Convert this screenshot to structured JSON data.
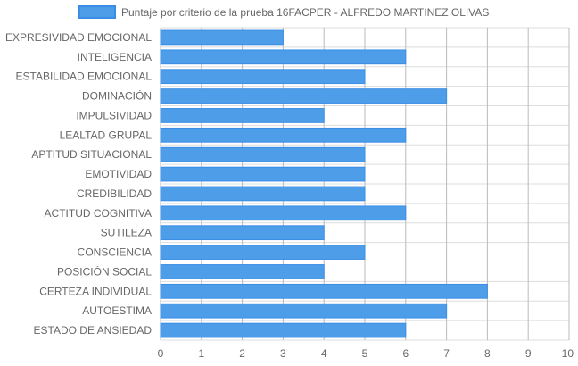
{
  "chart_data": {
    "type": "bar",
    "orientation": "horizontal",
    "title": "",
    "xlabel": "",
    "ylabel": "",
    "categories": [
      "EXPRESIVIDAD EMOCIONAL",
      "INTELIGENCIA",
      "ESTABILIDAD EMOCIONAL",
      "DOMINACIÓN",
      "IMPULSIVIDAD",
      "LEALTAD GRUPAL",
      "APTITUD SITUACIONAL",
      "EMOTIVIDAD",
      "CREDIBILIDAD",
      "ACTITUD COGNITIVA",
      "SUTILEZA",
      "CONSCIENCIA",
      "POSICIÓN SOCIAL",
      "CERTEZA INDIVIDUAL",
      "AUTOESTIMA",
      "ESTADO DE ANSIEDAD"
    ],
    "series": [
      {
        "name": "Puntaje por criterio de la prueba 16FACPER - ALFREDO MARTINEZ OLIVAS",
        "values": [
          3,
          6,
          5,
          7,
          4,
          6,
          5,
          5,
          5,
          6,
          4,
          5,
          4,
          8,
          7,
          6
        ]
      }
    ],
    "xlim": [
      0,
      10
    ],
    "xticks": [
      "0",
      "1",
      "2",
      "3",
      "4",
      "5",
      "6",
      "7",
      "8",
      "9",
      "10"
    ],
    "grid": true,
    "legend": "top-center",
    "colors": {
      "bar_fill": "#4e9de8",
      "bar_stroke": "#3a8ee6",
      "grid": "#dddddd",
      "grid_major": "#bbbbbb",
      "text": "#666666"
    }
  }
}
